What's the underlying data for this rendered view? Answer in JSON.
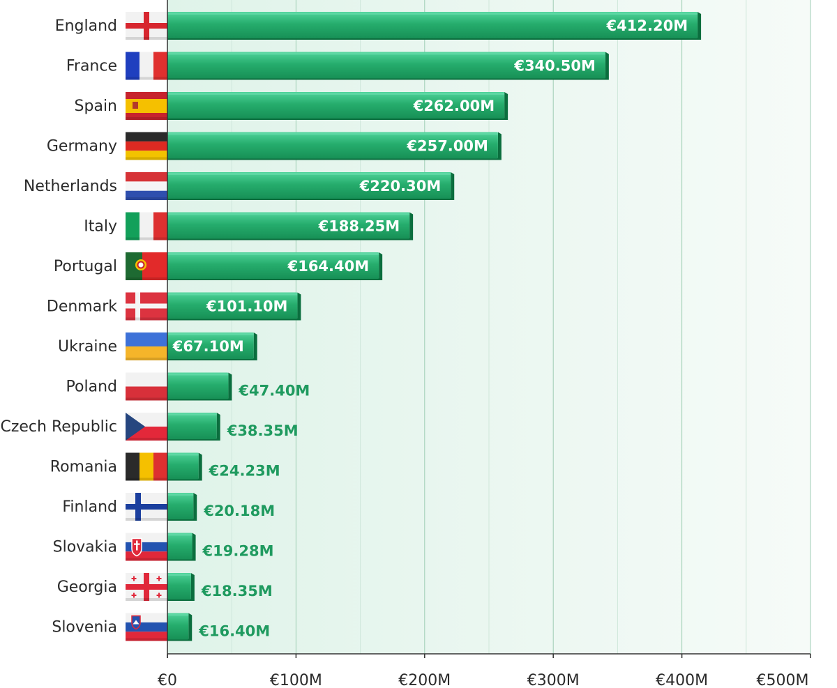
{
  "chart_data": {
    "type": "bar",
    "orientation": "horizontal",
    "categories": [
      "England",
      "France",
      "Spain",
      "Germany",
      "Netherlands",
      "Italy",
      "Portugal",
      "Denmark",
      "Ukraine",
      "Poland",
      "Czech Republic",
      "Romania",
      "Finland",
      "Slovakia",
      "Georgia",
      "Slovenia"
    ],
    "values": [
      412.2,
      340.5,
      262.0,
      257.0,
      220.3,
      188.25,
      164.4,
      101.1,
      67.1,
      47.4,
      38.35,
      24.23,
      20.18,
      19.28,
      18.35,
      16.4
    ],
    "data_labels": [
      "€412.20M",
      "€340.50M",
      "€262.00M",
      "€257.00M",
      "€220.30M",
      "€188.25M",
      "€164.40M",
      "€101.10M",
      "€67.10M",
      "€47.40M",
      "€38.35M",
      "€24.23M",
      "€20.18M",
      "€19.28M",
      "€18.35M",
      "€16.40M"
    ],
    "flags": [
      "england-flag",
      "france-flag",
      "spain-flag",
      "germany-flag",
      "netherlands-flag",
      "italy-flag",
      "portugal-flag",
      "denmark-flag",
      "ukraine-flag",
      "poland-flag",
      "czech-republic-flag",
      "romania-flag",
      "finland-flag",
      "slovakia-flag",
      "georgia-flag",
      "slovenia-flag"
    ],
    "x_ticks": [
      0,
      100,
      200,
      300,
      400,
      500
    ],
    "x_tick_labels": [
      "€0",
      "€100M",
      "€200M",
      "€300M",
      "€400M",
      "€500M"
    ],
    "xlim": [
      0,
      500
    ],
    "grid": true,
    "colors": {
      "bar_top": "#3cc48a",
      "bar_mid": "#22a567",
      "bar_bottom": "#138a52",
      "bar_shadow": "#0b6e3e",
      "label_outside": "#1f9a5f",
      "grid_line": "#b9dcc8",
      "plot_bg_start": "#dff3e9",
      "plot_bg_end": "#f6fbf8"
    }
  }
}
